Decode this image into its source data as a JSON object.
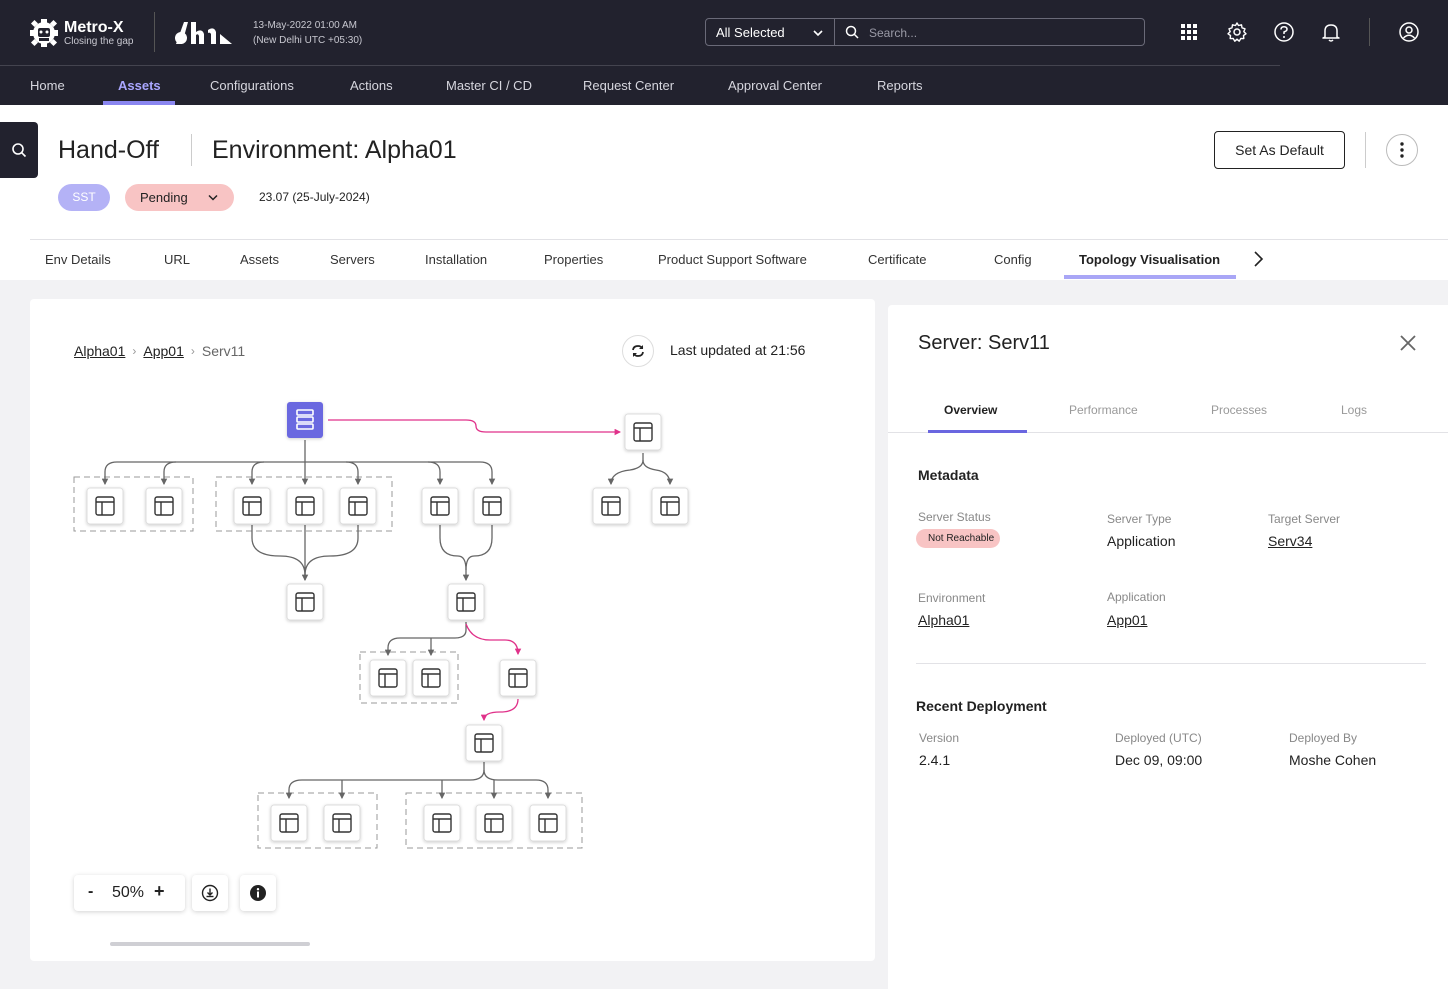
{
  "app": {
    "logo_title": "Metro-X",
    "logo_subtitle": "Closing the gap",
    "datetime_line1": "13-May-2022 01:00 AM",
    "datetime_line2": "(New Delhi UTC +05:30)"
  },
  "topbar": {
    "scope_select": "All Selected",
    "search_placeholder": "Search...",
    "icons": [
      "grid-icon",
      "gear-icon",
      "help-icon",
      "bell-icon",
      "user-icon"
    ]
  },
  "nav": {
    "items": [
      "Home",
      "Assets",
      "Configurations",
      "Actions",
      "Master CI / CD",
      "Request Center",
      "Approval Center",
      "Reports"
    ],
    "active": "Assets"
  },
  "header": {
    "title": "Hand-Off",
    "environment_title": "Environment: Alpha01",
    "set_default_label": "Set As Default",
    "badge_sst": "SST",
    "badge_status": "Pending",
    "version": "23.07 (25-July-2024)"
  },
  "tabs": {
    "items": [
      "Env Details",
      "URL",
      "Assets",
      "Servers",
      "Installation",
      "Properties",
      "Product Support Software",
      "Certificate",
      "Config",
      "Topology Visualisation"
    ],
    "active": "Topology Visualisation"
  },
  "topology": {
    "breadcrumb": [
      "Alpha01",
      "App01",
      "Serv11"
    ],
    "last_updated": "Last updated at 21:56",
    "zoom": "50%",
    "zoom_minus": "-",
    "zoom_plus": "+",
    "accent_color": "#6b67e0",
    "highlight_color": "#e0328a"
  },
  "panel": {
    "title": "Server: Serv11",
    "tabs": [
      "Overview",
      "Performance",
      "Processes",
      "Logs"
    ],
    "active_tab": "Overview",
    "metadata_heading": "Metadata",
    "server_status_label": "Server Status",
    "server_status_value": "Not Reachable",
    "server_type_label": "Server Type",
    "server_type_value": "Application",
    "target_server_label": "Target Server",
    "target_server_value": "Serv34",
    "environment_label": "Environment",
    "environment_value": "Alpha01",
    "application_label": "Application",
    "application_value": "App01",
    "deployment_heading": "Recent Deployment",
    "version_label": "Version",
    "version_value": "2.4.1",
    "deployed_label": "Deployed (UTC)",
    "deployed_value": "Dec 09, 09:00",
    "deployed_by_label": "Deployed By",
    "deployed_by_value": "Moshe Cohen"
  }
}
